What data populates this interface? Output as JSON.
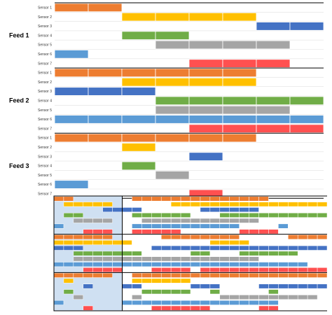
{
  "chart_data": {
    "type": "gantt",
    "title": "",
    "colors": {
      "Sensor 1": "#ED7D31",
      "Sensor 2": "#FFC000",
      "Sensor 3": "#4472C4",
      "Sensor 4": "#70AD47",
      "Sensor 5": "#A5A5A5",
      "Sensor 6": "#5B9BD5",
      "Sensor 7": "#FF5050"
    },
    "grid_color": "#e0e0e0",
    "divider_color": "#000000",
    "thumbnail_highlight": "#cfe0f2",
    "feeds": [
      {
        "label": "Feed 1",
        "rows": [
          {
            "sensor": "Sensor 1",
            "blocks": [
              0,
              1
            ]
          },
          {
            "sensor": "Sensor 2",
            "blocks": [
              2,
              3,
              4,
              5
            ]
          },
          {
            "sensor": "Sensor 3",
            "blocks": [
              6,
              7
            ]
          },
          {
            "sensor": "Sensor 4",
            "blocks": [
              2,
              3
            ]
          },
          {
            "sensor": "Sensor 5",
            "blocks": [
              3,
              4,
              5,
              6
            ]
          },
          {
            "sensor": "Sensor 6",
            "blocks": [
              0
            ]
          },
          {
            "sensor": "Sensor 7",
            "blocks": [
              4,
              5,
              6
            ]
          }
        ]
      },
      {
        "label": "Feed 2",
        "rows": [
          {
            "sensor": "Sensor 1",
            "blocks": [
              0,
              1,
              2,
              3,
              4,
              5
            ]
          },
          {
            "sensor": "Sensor 2",
            "blocks": [
              2,
              3,
              4,
              5
            ]
          },
          {
            "sensor": "Sensor 3",
            "blocks": [
              0,
              1,
              2
            ]
          },
          {
            "sensor": "Sensor 4",
            "blocks": [
              3,
              4,
              5,
              6,
              7
            ]
          },
          {
            "sensor": "Sensor 5",
            "blocks": [
              3,
              4,
              5,
              6
            ]
          },
          {
            "sensor": "Sensor 6",
            "blocks": [
              0,
              1,
              2,
              3,
              4,
              5,
              6,
              7
            ]
          },
          {
            "sensor": "Sensor 7",
            "blocks": [
              4,
              5,
              6,
              7
            ]
          }
        ]
      },
      {
        "label": "Feed 3",
        "rows": [
          {
            "sensor": "Sensor 1",
            "blocks": [
              0,
              1,
              2,
              3,
              4,
              5
            ]
          },
          {
            "sensor": "Sensor 2",
            "blocks": [
              2
            ]
          },
          {
            "sensor": "Sensor 3",
            "blocks": [
              4
            ]
          },
          {
            "sensor": "Sensor 4",
            "blocks": [
              2
            ]
          },
          {
            "sensor": "Sensor 5",
            "blocks": [
              3
            ]
          },
          {
            "sensor": "Sensor 6",
            "blocks": [
              0
            ]
          },
          {
            "sensor": "Sensor 7",
            "blocks": [
              4
            ]
          }
        ]
      }
    ],
    "thumbnail": {
      "panels": [
        [
          {
            "sensor": "Sensor 1",
            "blocks": [
              0,
              1,
              8,
              9,
              10,
              11,
              12,
              13,
              14,
              15,
              16,
              17,
              18,
              19,
              20,
              21
            ]
          },
          {
            "sensor": "Sensor 2",
            "blocks": [
              1,
              2,
              3,
              4,
              5,
              12,
              13,
              14,
              15,
              16,
              17,
              18,
              19,
              20,
              21,
              22,
              23,
              24,
              25,
              26,
              27
            ]
          },
          {
            "sensor": "Sensor 3",
            "blocks": [
              5,
              6,
              7,
              8,
              15,
              16,
              17,
              18,
              19,
              20
            ]
          },
          {
            "sensor": "Sensor 4",
            "blocks": [
              1,
              2,
              8,
              9,
              10,
              11,
              12,
              13,
              17,
              18,
              19,
              20,
              21,
              22,
              23,
              24,
              25,
              26,
              27
            ]
          },
          {
            "sensor": "Sensor 5",
            "blocks": [
              2,
              3,
              4,
              5,
              9,
              10,
              11,
              12,
              13,
              14,
              15,
              16,
              17,
              18,
              19,
              20
            ]
          },
          {
            "sensor": "Sensor 6",
            "blocks": [
              0,
              8,
              9,
              10,
              11,
              12,
              13,
              14,
              15,
              16,
              17,
              18,
              23
            ]
          },
          {
            "sensor": "Sensor 7",
            "blocks": [
              3,
              4,
              5,
              8,
              9,
              10,
              11,
              12,
              19,
              20,
              21,
              22
            ]
          }
        ],
        [
          {
            "sensor": "Sensor 1",
            "blocks": [
              0,
              1,
              2,
              3,
              4,
              5,
              11,
              12,
              13,
              14,
              15,
              16,
              17,
              18,
              24,
              25,
              26,
              27
            ]
          },
          {
            "sensor": "Sensor 2",
            "blocks": [
              0,
              1,
              2,
              3,
              4,
              5,
              6,
              7,
              16,
              17,
              18,
              19
            ]
          },
          {
            "sensor": "Sensor 3",
            "blocks": [
              0,
              1,
              2,
              10,
              11,
              12,
              13,
              14,
              15,
              16,
              17,
              18,
              19,
              20,
              21,
              22,
              23,
              24,
              25,
              26,
              27
            ]
          },
          {
            "sensor": "Sensor 4",
            "blocks": [
              2,
              3,
              4,
              5,
              6,
              7,
              8,
              14,
              15,
              19,
              20,
              21,
              22,
              23,
              24
            ]
          },
          {
            "sensor": "Sensor 5",
            "blocks": [
              2,
              3,
              4,
              5,
              6,
              7,
              8,
              9,
              10,
              11,
              12,
              13,
              14,
              15,
              16,
              17,
              18,
              19,
              20
            ]
          },
          {
            "sensor": "Sensor 6",
            "blocks": [
              0,
              1,
              2,
              3,
              4,
              5,
              6,
              7,
              8,
              9,
              10,
              11,
              12,
              13,
              14,
              15,
              16,
              17,
              18,
              19,
              20,
              21,
              22,
              23,
              24,
              25
            ]
          },
          {
            "sensor": "Sensor 7",
            "blocks": [
              3,
              4,
              5,
              6,
              10,
              11,
              12,
              13,
              15,
              16,
              17,
              18,
              19,
              20,
              21,
              22,
              23,
              24,
              25,
              26,
              27
            ]
          }
        ],
        [
          {
            "sensor": "Sensor 1",
            "blocks": [
              0,
              1,
              2,
              3,
              4,
              5,
              8,
              9,
              10,
              11,
              12,
              13,
              14,
              15,
              16,
              17,
              18,
              19,
              20,
              21,
              22,
              23,
              24,
              25,
              26,
              27
            ]
          },
          {
            "sensor": "Sensor 2",
            "blocks": [
              1,
              8,
              9,
              10,
              11,
              12,
              13
            ]
          },
          {
            "sensor": "Sensor 3",
            "blocks": [
              3,
              7,
              8,
              14,
              15,
              16,
              21,
              22,
              23,
              24,
              25,
              26,
              27
            ]
          },
          {
            "sensor": "Sensor 4",
            "blocks": [
              1,
              9,
              10,
              11,
              12,
              13,
              16,
              22
            ]
          },
          {
            "sensor": "Sensor 5",
            "blocks": [
              2,
              8,
              17,
              18,
              19,
              20,
              21,
              22,
              23,
              24,
              25,
              26
            ]
          },
          {
            "sensor": "Sensor 6",
            "blocks": [
              0,
              7,
              8,
              9,
              10,
              11,
              12,
              13,
              14,
              15,
              16,
              17,
              18,
              19,
              20,
              21,
              22
            ]
          },
          {
            "sensor": "Sensor 7",
            "blocks": [
              3,
              10,
              11,
              12,
              13,
              14,
              15,
              21,
              22
            ]
          }
        ]
      ]
    }
  }
}
